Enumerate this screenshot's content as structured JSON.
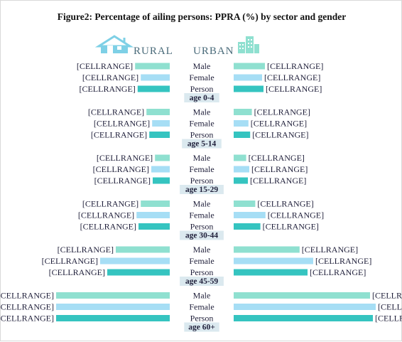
{
  "chart_data": {
    "type": "bar",
    "title": "Figure2: Percentage of ailing persons: PPRA (%) by sector and gender",
    "legend": {
      "rural": "RURAL",
      "urban": "URBAN",
      "placement": "top"
    },
    "categories": [
      "Male",
      "Female",
      "Person"
    ],
    "group_label_prefix": "age",
    "groups": [
      {
        "label": "age 0-4",
        "rural": [
          12.2,
          10.2,
          11.3
        ],
        "urban": [
          11.0,
          10.0,
          10.5
        ]
      },
      {
        "label": "age 5-14",
        "rural": [
          8.2,
          6.2,
          7.2
        ],
        "urban": [
          6.4,
          5.2,
          5.8
        ]
      },
      {
        "label": "age 15-29",
        "rural": [
          5.2,
          6.5,
          6.0
        ],
        "urban": [
          4.4,
          5.5,
          5.0
        ]
      },
      {
        "label": "age 30-44",
        "rural": [
          10.2,
          11.7,
          11.0
        ],
        "urban": [
          7.6,
          11.2,
          9.4
        ]
      },
      {
        "label": "age 45-59",
        "rural": [
          19.0,
          24.5,
          22.0
        ],
        "urban": [
          23.2,
          28.0,
          26.0
        ]
      },
      {
        "label": "age 60+",
        "rural": [
          40.0,
          40.0,
          40.0
        ],
        "urban": [
          48.0,
          50.0,
          49.0
        ]
      }
    ],
    "data_label": "[CELLRANGE]",
    "series_colors": {
      "Male": "#8fe0d0",
      "Female": "#a6def5",
      "Person": "#35c4c0"
    },
    "age_label_bg": "#dbe9ef",
    "icon_color": "#7ed0e6",
    "xlabel": "",
    "ylabel": ""
  }
}
